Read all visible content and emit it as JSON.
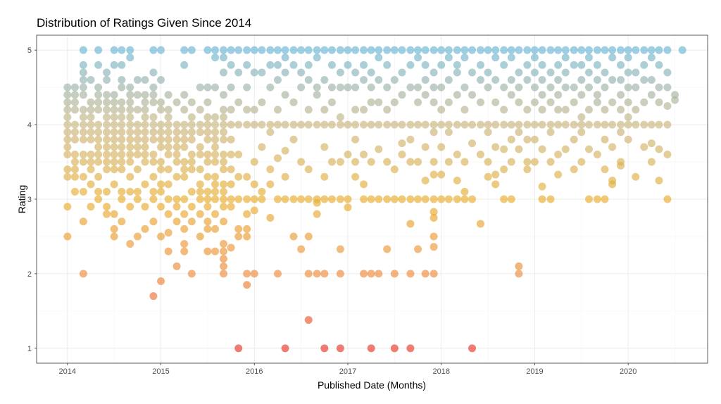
{
  "chart_data": {
    "type": "scatter",
    "title": "Distribution of Ratings Given Since 2014",
    "xlabel": "Published Date (Months)",
    "ylabel": "Rating",
    "xlim": [
      2013.67,
      2020.85
    ],
    "ylim": [
      0.8,
      5.2
    ],
    "x_ticks": [
      2014,
      2015,
      2016,
      2017,
      2018,
      2019,
      2020
    ],
    "x_tick_labels": [
      "2014",
      "2015",
      "2016",
      "2017",
      "2018",
      "2019",
      "2020"
    ],
    "y_ticks": [
      1,
      2,
      3,
      4,
      5
    ],
    "y_tick_labels": [
      "1",
      "2",
      "3",
      "4",
      "5"
    ],
    "grid": true,
    "legend": "none",
    "color_scale": [
      {
        "rating": 1.0,
        "color": "#e8372a"
      },
      {
        "rating": 2.0,
        "color": "#ee8a3a"
      },
      {
        "rating": 3.0,
        "color": "#e8ae2e"
      },
      {
        "rating": 4.0,
        "color": "#c9b57e"
      },
      {
        "rating": 4.5,
        "color": "#9db3a8"
      },
      {
        "rating": 5.0,
        "color": "#6ab6d3"
      }
    ],
    "point_opacity": 0.65,
    "columns": [
      {
        "x": 2014.0,
        "r": [
          2.5,
          2.9,
          3.3,
          3.4,
          3.6,
          3.7,
          3.8,
          3.9,
          4.0,
          4.1,
          4.2,
          4.3,
          4.4,
          4.5
        ]
      },
      {
        "x": 2014.08,
        "r": [
          3.1,
          3.3,
          3.4,
          3.5,
          3.6,
          3.8,
          3.9,
          4.0,
          4.2,
          4.3,
          4.4,
          4.5
        ]
      },
      {
        "x": 2014.17,
        "r": [
          2.0,
          2.7,
          3.1,
          3.3,
          3.5,
          3.6,
          3.8,
          3.9,
          4.0,
          4.1,
          4.2,
          4.4,
          4.5,
          4.6,
          4.7,
          4.8,
          5.0
        ]
      },
      {
        "x": 2014.25,
        "r": [
          2.9,
          3.2,
          3.4,
          3.5,
          3.6,
          3.8,
          3.9,
          4.0,
          4.1,
          4.2,
          4.3,
          4.6
        ]
      },
      {
        "x": 2014.33,
        "r": [
          3.0,
          3.1,
          3.3,
          3.5,
          3.6,
          3.7,
          3.8,
          3.9,
          4.0,
          4.2,
          4.3,
          4.4,
          4.5,
          4.8,
          5.0
        ]
      },
      {
        "x": 2014.42,
        "r": [
          2.8,
          2.9,
          3.1,
          3.4,
          3.5,
          3.6,
          3.7,
          3.8,
          3.9,
          4.0,
          4.1,
          4.2,
          4.3,
          4.4,
          4.6,
          4.7
        ]
      },
      {
        "x": 2014.5,
        "r": [
          2.5,
          2.6,
          2.8,
          3.2,
          3.4,
          3.5,
          3.6,
          3.7,
          3.8,
          3.9,
          4.0,
          4.1,
          4.2,
          4.3,
          4.4,
          4.8,
          5.0
        ]
      },
      {
        "x": 2014.58,
        "r": [
          2.7,
          3.0,
          3.1,
          3.4,
          3.5,
          3.6,
          3.7,
          3.8,
          3.9,
          4.0,
          4.1,
          4.2,
          4.3,
          4.5,
          4.6,
          4.8,
          5.0
        ]
      },
      {
        "x": 2014.67,
        "r": [
          2.4,
          2.9,
          3.1,
          3.3,
          3.5,
          3.6,
          3.7,
          3.8,
          3.9,
          4.0,
          4.1,
          4.2,
          4.3,
          4.4,
          4.5,
          4.9,
          5.0
        ]
      },
      {
        "x": 2014.75,
        "r": [
          2.5,
          3.0,
          3.1,
          3.4,
          3.6,
          3.7,
          3.8,
          3.9,
          4.0,
          4.2,
          4.4,
          4.6
        ]
      },
      {
        "x": 2014.83,
        "r": [
          2.6,
          2.9,
          3.2,
          3.5,
          3.6,
          3.7,
          3.8,
          3.9,
          4.0,
          4.1,
          4.2,
          4.3,
          4.4,
          4.6
        ]
      },
      {
        "x": 2014.92,
        "r": [
          1.7,
          2.7,
          3.0,
          3.1,
          3.3,
          3.5,
          3.6,
          3.8,
          3.9,
          4.0,
          4.1,
          4.3,
          4.4,
          4.5,
          4.7,
          5.0
        ]
      },
      {
        "x": 2015.0,
        "r": [
          1.9,
          2.5,
          2.9,
          3.1,
          3.2,
          3.4,
          3.5,
          3.7,
          3.8,
          3.9,
          4.0,
          4.2,
          4.3,
          4.6,
          5.0
        ]
      },
      {
        "x": 2015.08,
        "r": [
          2.3,
          2.55,
          2.8,
          3.0,
          3.2,
          3.4,
          3.6,
          3.7,
          3.8,
          3.9,
          4.0,
          4.1,
          4.2,
          4.4
        ]
      },
      {
        "x": 2015.17,
        "r": [
          2.1,
          2.7,
          2.9,
          3.0,
          3.3,
          3.5,
          3.6,
          3.7,
          3.8,
          3.9,
          4.0,
          4.3
        ]
      },
      {
        "x": 2015.25,
        "r": [
          2.3,
          2.4,
          2.6,
          2.8,
          3.0,
          3.3,
          3.4,
          3.5,
          3.7,
          3.8,
          3.9,
          4.0,
          4.2,
          4.4,
          4.8,
          5.0
        ]
      },
      {
        "x": 2015.33,
        "r": [
          2.0,
          2.7,
          2.9,
          3.1,
          3.4,
          3.5,
          3.6,
          3.8,
          3.9,
          4.0,
          4.1,
          4.3,
          5.0
        ]
      },
      {
        "x": 2015.42,
        "r": [
          2.5,
          2.8,
          3.0,
          3.1,
          3.2,
          3.4,
          3.6,
          3.7,
          3.9,
          4.0,
          4.2,
          4.5
        ]
      },
      {
        "x": 2015.5,
        "r": [
          2.3,
          2.6,
          2.7,
          2.9,
          3.0,
          3.1,
          3.3,
          3.5,
          3.6,
          3.8,
          3.9,
          4.0,
          4.1,
          4.3,
          4.5,
          5.0
        ]
      },
      {
        "x": 2015.58,
        "r": [
          2.3,
          2.6,
          2.8,
          3.0,
          3.1,
          3.2,
          3.3,
          3.5,
          3.6,
          3.7,
          3.8,
          3.9,
          4.0,
          4.1,
          4.5,
          4.9,
          5.0
        ]
      },
      {
        "x": 2015.67,
        "r": [
          2.0,
          2.1,
          2.2,
          2.3,
          2.4,
          2.7,
          2.9,
          3.0,
          3.1,
          3.2,
          3.4,
          3.5,
          3.6,
          3.8,
          3.9,
          4.0,
          4.1,
          4.2,
          4.4,
          4.7,
          4.9,
          5.0
        ]
      },
      {
        "x": 2015.75,
        "r": [
          2.35,
          2.9,
          3.0,
          3.2,
          3.4,
          3.6,
          3.8,
          4.0,
          4.2,
          4.5,
          4.8,
          5.0
        ]
      },
      {
        "x": 2015.83,
        "r": [
          1.0,
          2.5,
          2.6,
          3.0,
          3.3,
          3.6,
          4.0,
          4.3,
          4.7,
          5.0
        ]
      },
      {
        "x": 2015.92,
        "r": [
          1.85,
          2.0,
          2.5,
          2.6,
          2.8,
          3.0,
          3.3,
          4.0,
          4.2,
          4.5,
          4.8,
          5.0
        ]
      },
      {
        "x": 2016.0,
        "r": [
          2.0,
          2.85,
          3.0,
          3.2,
          3.5,
          4.0,
          4.2,
          4.7,
          5.0
        ]
      },
      {
        "x": 2016.08,
        "r": [
          3.0,
          3.1,
          3.7,
          4.0,
          4.3,
          4.7,
          5.0
        ]
      },
      {
        "x": 2016.17,
        "r": [
          2.75,
          3.2,
          3.4,
          3.9,
          4.0,
          4.5,
          4.8,
          5.0
        ]
      },
      {
        "x": 2016.25,
        "r": [
          2.0,
          3.0,
          3.55,
          4.0,
          4.2,
          4.6,
          4.8,
          5.0
        ]
      },
      {
        "x": 2016.33,
        "r": [
          1.0,
          3.0,
          3.3,
          3.65,
          4.0,
          4.4,
          4.7,
          4.9,
          5.0
        ]
      },
      {
        "x": 2016.42,
        "r": [
          2.5,
          3.0,
          3.8,
          4.0,
          4.3,
          4.8,
          5.0
        ]
      },
      {
        "x": 2016.5,
        "r": [
          2.33,
          3.0,
          3.5,
          4.0,
          4.5,
          4.7,
          5.0
        ]
      },
      {
        "x": 2016.58,
        "r": [
          1.38,
          2.0,
          2.5,
          3.0,
          3.4,
          4.0,
          4.2,
          4.6,
          4.8,
          5.0
        ]
      },
      {
        "x": 2016.67,
        "r": [
          2.0,
          2.8,
          2.95,
          3.0,
          4.0,
          4.4,
          4.5,
          4.9,
          5.0
        ]
      },
      {
        "x": 2016.75,
        "r": [
          1.0,
          2.0,
          3.0,
          3.3,
          3.7,
          4.0,
          4.2,
          4.6,
          5.0
        ]
      },
      {
        "x": 2016.83,
        "r": [
          3.0,
          3.5,
          4.0,
          4.3,
          4.5,
          4.8,
          5.0
        ]
      },
      {
        "x": 2016.92,
        "r": [
          1.0,
          2.0,
          2.33,
          3.0,
          3.5,
          4.0,
          4.1,
          4.5,
          4.7,
          5.0
        ]
      },
      {
        "x": 2017.0,
        "r": [
          2.89,
          3.0,
          3.6,
          4.0,
          4.5,
          4.8,
          5.0
        ]
      },
      {
        "x": 2017.08,
        "r": [
          3.3,
          3.5,
          3.8,
          4.0,
          4.2,
          4.5,
          4.7,
          5.0
        ]
      },
      {
        "x": 2017.17,
        "r": [
          2.0,
          3.0,
          3.2,
          3.6,
          4.0,
          4.2,
          4.6,
          4.8,
          5.0
        ]
      },
      {
        "x": 2017.25,
        "r": [
          1.0,
          2.0,
          3.0,
          3.5,
          4.0,
          4.3,
          4.5,
          4.7,
          5.0
        ]
      },
      {
        "x": 2017.33,
        "r": [
          2.0,
          3.0,
          3.67,
          4.0,
          4.3,
          4.6,
          4.9,
          5.0
        ]
      },
      {
        "x": 2017.42,
        "r": [
          2.33,
          3.0,
          3.5,
          4.0,
          4.2,
          4.5,
          4.8,
          5.0
        ]
      },
      {
        "x": 2017.5,
        "r": [
          1.0,
          2.0,
          3.0,
          3.4,
          4.0,
          4.3,
          4.6,
          5.0
        ]
      },
      {
        "x": 2017.58,
        "r": [
          3.0,
          3.6,
          3.75,
          4.0,
          4.4,
          4.7,
          5.0
        ]
      },
      {
        "x": 2017.67,
        "r": [
          1.0,
          2.0,
          2.67,
          3.0,
          3.5,
          3.8,
          4.0,
          4.5,
          4.8,
          5.0
        ]
      },
      {
        "x": 2017.75,
        "r": [
          2.33,
          3.0,
          3.5,
          4.0,
          4.3,
          4.5,
          4.9,
          5.0
        ]
      },
      {
        "x": 2017.83,
        "r": [
          2.0,
          3.0,
          3.25,
          3.7,
          4.0,
          4.4,
          4.6,
          4.8,
          5.0
        ]
      },
      {
        "x": 2017.92,
        "r": [
          2.0,
          2.36,
          2.5,
          2.75,
          2.83,
          3.0,
          3.33,
          3.5,
          3.9,
          4.0,
          4.3,
          4.5,
          4.7,
          5.0
        ]
      },
      {
        "x": 2018.0,
        "r": [
          3.0,
          3.33,
          3.7,
          4.0,
          4.2,
          4.5,
          4.8,
          5.0
        ]
      },
      {
        "x": 2018.08,
        "r": [
          3.0,
          3.5,
          3.9,
          4.0,
          4.3,
          4.6,
          4.9,
          5.0
        ]
      },
      {
        "x": 2018.17,
        "r": [
          3.0,
          3.25,
          3.6,
          4.0,
          4.4,
          4.7,
          4.8,
          5.0
        ]
      },
      {
        "x": 2018.25,
        "r": [
          3.0,
          3.1,
          3.5,
          4.0,
          4.2,
          4.5,
          4.9,
          5.0
        ]
      },
      {
        "x": 2018.33,
        "r": [
          1.0,
          3.0,
          3.75,
          4.0,
          4.4,
          4.7,
          5.0
        ]
      },
      {
        "x": 2018.42,
        "r": [
          2.67,
          3.6,
          4.0,
          4.3,
          4.6,
          4.8,
          5.0
        ]
      },
      {
        "x": 2018.5,
        "r": [
          3.3,
          3.5,
          3.9,
          4.0,
          4.5,
          4.7,
          5.0
        ]
      },
      {
        "x": 2018.58,
        "r": [
          3.2,
          3.33,
          3.7,
          4.0,
          4.3,
          4.6,
          4.9,
          5.0
        ]
      },
      {
        "x": 2018.67,
        "r": [
          3.0,
          3.4,
          3.67,
          4.0,
          4.2,
          4.5,
          4.8,
          5.0
        ]
      },
      {
        "x": 2018.75,
        "r": [
          3.0,
          3.5,
          3.8,
          4.0,
          4.4,
          4.6,
          4.9,
          5.0
        ]
      },
      {
        "x": 2018.83,
        "r": [
          2.0,
          2.1,
          3.67,
          3.9,
          4.0,
          4.3,
          4.5,
          4.7,
          5.0
        ]
      },
      {
        "x": 2018.92,
        "r": [
          3.4,
          3.5,
          3.8,
          4.0,
          4.2,
          4.6,
          4.8,
          5.0
        ]
      },
      {
        "x": 2019.0,
        "r": [
          3.5,
          3.8,
          4.0,
          4.3,
          4.5,
          4.7,
          4.9,
          5.0
        ]
      },
      {
        "x": 2019.08,
        "r": [
          3.0,
          3.17,
          3.67,
          4.0,
          4.2,
          4.4,
          4.6,
          4.8,
          5.0
        ]
      },
      {
        "x": 2019.17,
        "r": [
          3.0,
          3.5,
          3.9,
          4.0,
          4.3,
          4.5,
          4.7,
          5.0
        ]
      },
      {
        "x": 2019.25,
        "r": [
          3.33,
          3.6,
          4.0,
          4.2,
          4.4,
          4.6,
          4.8,
          5.0
        ]
      },
      {
        "x": 2019.33,
        "r": [
          3.67,
          4.0,
          4.2,
          4.5,
          4.7,
          4.9,
          5.0
        ]
      },
      {
        "x": 2019.42,
        "r": [
          3.4,
          3.8,
          4.0,
          4.3,
          4.5,
          4.8,
          5.0
        ]
      },
      {
        "x": 2019.5,
        "r": [
          3.5,
          3.9,
          4.0,
          4.1,
          4.4,
          4.6,
          4.8,
          5.0
        ]
      },
      {
        "x": 2019.58,
        "r": [
          3.0,
          3.67,
          4.0,
          4.2,
          4.5,
          4.7,
          4.9,
          5.0
        ]
      },
      {
        "x": 2019.67,
        "r": [
          3.0,
          3.6,
          4.0,
          4.3,
          4.4,
          4.6,
          4.8,
          5.0
        ]
      },
      {
        "x": 2019.75,
        "r": [
          3.0,
          3.4,
          3.8,
          4.0,
          4.2,
          4.5,
          4.7,
          5.0
        ]
      },
      {
        "x": 2019.83,
        "r": [
          3.2,
          3.25,
          3.7,
          4.0,
          4.3,
          4.6,
          4.9,
          5.0
        ]
      },
      {
        "x": 2019.92,
        "r": [
          3.45,
          3.5,
          3.9,
          4.0,
          4.2,
          4.4,
          4.6,
          4.8,
          5.0
        ]
      },
      {
        "x": 2020.0,
        "r": [
          3.8,
          4.0,
          4.1,
          4.3,
          4.5,
          4.7,
          4.9,
          5.0
        ]
      },
      {
        "x": 2020.08,
        "r": [
          3.3,
          4.0,
          4.2,
          4.5,
          4.7,
          5.0
        ]
      },
      {
        "x": 2020.17,
        "r": [
          3.7,
          4.0,
          4.3,
          4.6,
          4.8,
          5.0
        ]
      },
      {
        "x": 2020.25,
        "r": [
          3.5,
          3.75,
          4.0,
          4.4,
          4.6,
          4.9,
          5.0
        ]
      },
      {
        "x": 2020.33,
        "r": [
          3.25,
          3.67,
          4.0,
          4.3,
          4.5,
          4.8,
          5.0
        ]
      },
      {
        "x": 2020.42,
        "r": [
          3.0,
          3.6,
          4.0,
          4.25,
          4.5,
          4.7,
          5.0
        ]
      },
      {
        "x": 2020.5,
        "r": [
          4.33,
          4.4
        ]
      },
      {
        "x": 2020.58,
        "r": [
          5.0
        ]
      }
    ]
  }
}
